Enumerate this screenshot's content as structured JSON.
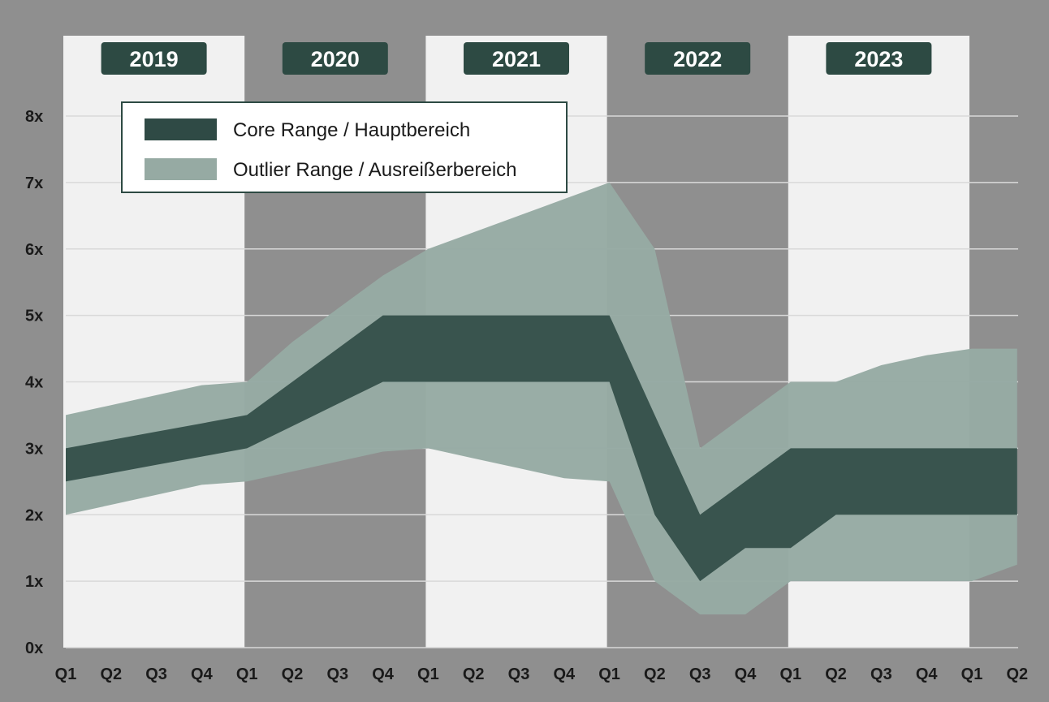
{
  "chart_data": {
    "type": "area",
    "title": "",
    "xlabel": "",
    "ylabel": "",
    "ylim": [
      0,
      8
    ],
    "y_ticks": [
      0,
      1,
      2,
      3,
      4,
      5,
      6,
      7,
      8
    ],
    "y_tick_labels": [
      "0x",
      "1x",
      "2x",
      "3x",
      "4x",
      "5x",
      "6x",
      "7x",
      "8x"
    ],
    "categories": [
      "Q1",
      "Q2",
      "Q3",
      "Q4",
      "Q1",
      "Q2",
      "Q3",
      "Q4",
      "Q1",
      "Q2",
      "Q3",
      "Q4",
      "Q1",
      "Q2",
      "Q3",
      "Q4",
      "Q1",
      "Q2",
      "Q3",
      "Q4",
      "Q1",
      "Q2"
    ],
    "years": [
      {
        "label": "2019",
        "shaded": true
      },
      {
        "label": "2020",
        "shaded": false
      },
      {
        "label": "2021",
        "shaded": true
      },
      {
        "label": "2022",
        "shaded": false
      },
      {
        "label": "2023",
        "shaded": true
      }
    ],
    "colors": {
      "background": "#8f8f8f",
      "year_band": "#f1f1f1",
      "core": "#2f4a45",
      "outlier": "#96aaa3",
      "year_badge": "#2d4a43",
      "gridline": "#d9d9d9"
    },
    "series": [
      {
        "name": "Outlier Range / Ausreißerbereich",
        "upper": [
          3.5,
          3.65,
          3.8,
          3.95,
          4.0,
          4.6,
          5.1,
          5.6,
          6.0,
          6.25,
          6.5,
          6.75,
          7.0,
          6.0,
          3.0,
          3.5,
          4.0,
          4.0,
          4.25,
          4.4,
          4.5,
          4.5
        ],
        "lower": [
          2.0,
          2.15,
          2.3,
          2.45,
          2.5,
          2.65,
          2.8,
          2.95,
          3.0,
          2.85,
          2.7,
          2.55,
          2.5,
          1.0,
          0.5,
          0.5,
          1.0,
          1.0,
          1.0,
          1.0,
          1.0,
          1.25
        ]
      },
      {
        "name": "Core Range / Hauptbereich",
        "upper": [
          3.0,
          3.125,
          3.25,
          3.375,
          3.5,
          4.0,
          4.5,
          5.0,
          5.0,
          5.0,
          5.0,
          5.0,
          5.0,
          3.5,
          2.0,
          2.5,
          3.0,
          3.0,
          3.0,
          3.0,
          3.0,
          3.0
        ],
        "lower": [
          2.5,
          2.625,
          2.75,
          2.875,
          3.0,
          3.333,
          3.667,
          4.0,
          4.0,
          4.0,
          4.0,
          4.0,
          4.0,
          2.0,
          1.0,
          1.5,
          1.5,
          2.0,
          2.0,
          2.0,
          2.0,
          2.0
        ]
      }
    ],
    "legend": [
      {
        "label": "Core Range / Hauptbereich",
        "color": "#2f4a45"
      },
      {
        "label": "Outlier Range / Ausreißerbereich",
        "color": "#96aaa3"
      }
    ],
    "legend_position": "top-left"
  }
}
